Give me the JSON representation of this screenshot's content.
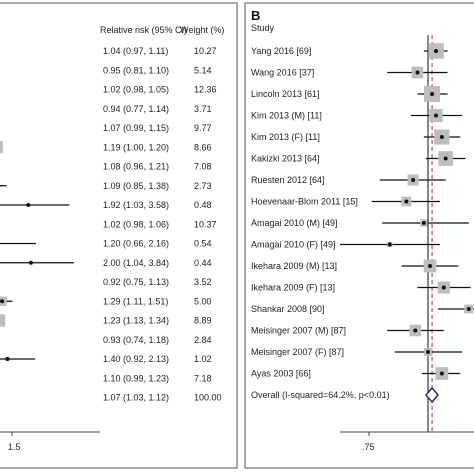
{
  "panel_a": {
    "header_rr": "Relative risk (95% CI)",
    "header_weight": "Weight (%)",
    "axis_tick": "1.5",
    "rows": [
      {
        "rr": "1.04 (0.97, 1.11)",
        "weight": "10.27"
      },
      {
        "rr": "0.95 (0.81, 1.10)",
        "weight": "5.14"
      },
      {
        "rr": "1.02 (0.98, 1.05)",
        "weight": "12.36"
      },
      {
        "rr": "0.94 (0.77, 1.14)",
        "weight": "3.71"
      },
      {
        "rr": "1.07 (0.99, 1.15)",
        "weight": "9.77"
      },
      {
        "rr": "1.19 (1.00, 1.20)",
        "weight": "8.66"
      },
      {
        "rr": "1.08 (0.96, 1.21)",
        "weight": "7.08"
      },
      {
        "rr": "1.09 (0.85, 1.38)",
        "weight": "2.73"
      },
      {
        "rr": "1.92 (1.03, 3.58)",
        "weight": "0.48"
      },
      {
        "rr": "1.02 (0.98, 1.06)",
        "weight": "10.37"
      },
      {
        "rr": "1.20 (0.66, 2.16)",
        "weight": "0.54"
      },
      {
        "rr": "2.00 (1.04, 3.84)",
        "weight": "0.44"
      },
      {
        "rr": "0.92 (0.75, 1.13)",
        "weight": "3.52"
      },
      {
        "rr": "1.29 (1.11, 1.51)",
        "weight": "5.00"
      },
      {
        "rr": "1.23 (1.13, 1.34)",
        "weight": "8.89"
      },
      {
        "rr": "0.93 (0.74, 1.18)",
        "weight": "2.84"
      },
      {
        "rr": "1.40 (0.92, 2.13)",
        "weight": "1.02"
      },
      {
        "rr": "1.10 (0.99, 1.23)",
        "weight": "7.18"
      },
      {
        "rr": "1.07 (1.03, 1.12)",
        "weight": "100.00"
      }
    ]
  },
  "panel_b": {
    "letter": "B",
    "header_study": "Study",
    "axis_tick": ".75",
    "studies": [
      "Yang 2016 [69]",
      "Wang 2016 [37]",
      "Lincoln 2013 [61]",
      "Kim 2013 (M) [11]",
      "Kim 2013 (F) [11]",
      "Kakizki 2013 [64]",
      "Ruesten 2012 [64]",
      "Hoevenaar-Blom 2011 [15]",
      "Amagai 2010 (M) [49]",
      "Amagai 2010 (F) [49]",
      "Ikehara 2009 (M) [13]",
      "Ikehara 2009 (F) [13]",
      "Shankar 2008 [90]",
      "Meisinger 2007 (M) [87]",
      "Meisinger 2007 (F) [87]",
      "Ayas 2003 [66]",
      "Overall (I-squared=64.2%, p<0.01)"
    ]
  },
  "chart_data": [
    {
      "type": "forest",
      "panel": "A",
      "columns": [
        "Relative risk (95% CI)",
        "Weight (%)"
      ],
      "rr": [
        1.04,
        0.95,
        1.02,
        0.94,
        1.07,
        1.19,
        1.08,
        1.09,
        1.92,
        1.02,
        1.2,
        2.0,
        0.92,
        1.29,
        1.23,
        0.93,
        1.4,
        1.1
      ],
      "ci_low": [
        0.97,
        0.81,
        0.98,
        0.77,
        0.99,
        1.0,
        0.96,
        0.85,
        1.03,
        0.98,
        0.66,
        1.04,
        0.75,
        1.11,
        1.13,
        0.74,
        0.92,
        0.99
      ],
      "ci_high": [
        1.11,
        1.1,
        1.05,
        1.14,
        1.15,
        1.2,
        1.21,
        1.38,
        3.58,
        1.06,
        2.16,
        3.84,
        1.13,
        1.51,
        1.34,
        1.18,
        2.13,
        1.23
      ],
      "weight": [
        10.27,
        5.14,
        12.36,
        3.71,
        9.77,
        8.66,
        7.08,
        2.73,
        0.48,
        10.37,
        0.54,
        0.44,
        3.52,
        5.0,
        8.89,
        2.84,
        1.02,
        7.18
      ],
      "overall": {
        "rr": 1.07,
        "ci_low": 1.03,
        "ci_high": 1.12,
        "weight": 100.0
      },
      "x_ticks": [
        1.5
      ]
    },
    {
      "type": "forest",
      "panel": "B",
      "studies": [
        "Yang 2016",
        "Wang 2016",
        "Lincoln 2013",
        "Kim 2013 (M)",
        "Kim 2013 (F)",
        "Kakizki 2013",
        "Ruesten 2012",
        "Hoevenaar-Blom 2011",
        "Amagai 2010 (M)",
        "Amagai 2010 (F)",
        "Ikehara 2009 (M)",
        "Ikehara 2009 (F)",
        "Shankar 2008",
        "Meisinger 2007 (M)",
        "Meisinger 2007 (F)",
        "Ayas 2003"
      ],
      "rr": [
        1.04,
        0.95,
        1.02,
        1.04,
        1.07,
        1.09,
        0.93,
        0.9,
        0.98,
        0.83,
        1.01,
        1.08,
        1.22,
        0.94,
        1.0,
        1.07
      ],
      "ci_low": [
        0.98,
        0.82,
        0.95,
        0.92,
        0.98,
        0.99,
        0.79,
        0.76,
        0.8,
        0.65,
        0.88,
        0.95,
        1.05,
        0.82,
        0.85,
        0.97
      ],
      "ci_high": [
        1.1,
        1.1,
        1.1,
        1.18,
        1.17,
        1.2,
        1.09,
        1.06,
        1.22,
        1.06,
        1.16,
        1.23,
        1.42,
        1.08,
        1.18,
        1.17
      ],
      "weight": [
        9.0,
        5.0,
        9.5,
        6.5,
        8.5,
        8.0,
        4.5,
        3.5,
        2.0,
        1.0,
        6.0,
        5.5,
        3.0,
        5.0,
        2.5,
        6.0
      ],
      "overall": {
        "rr": 1.02,
        "ci_low": 0.99,
        "ci_high": 1.05
      },
      "x_ticks": [
        0.75
      ],
      "x_axis_range": [
        0.7,
        1.25
      ]
    }
  ]
}
